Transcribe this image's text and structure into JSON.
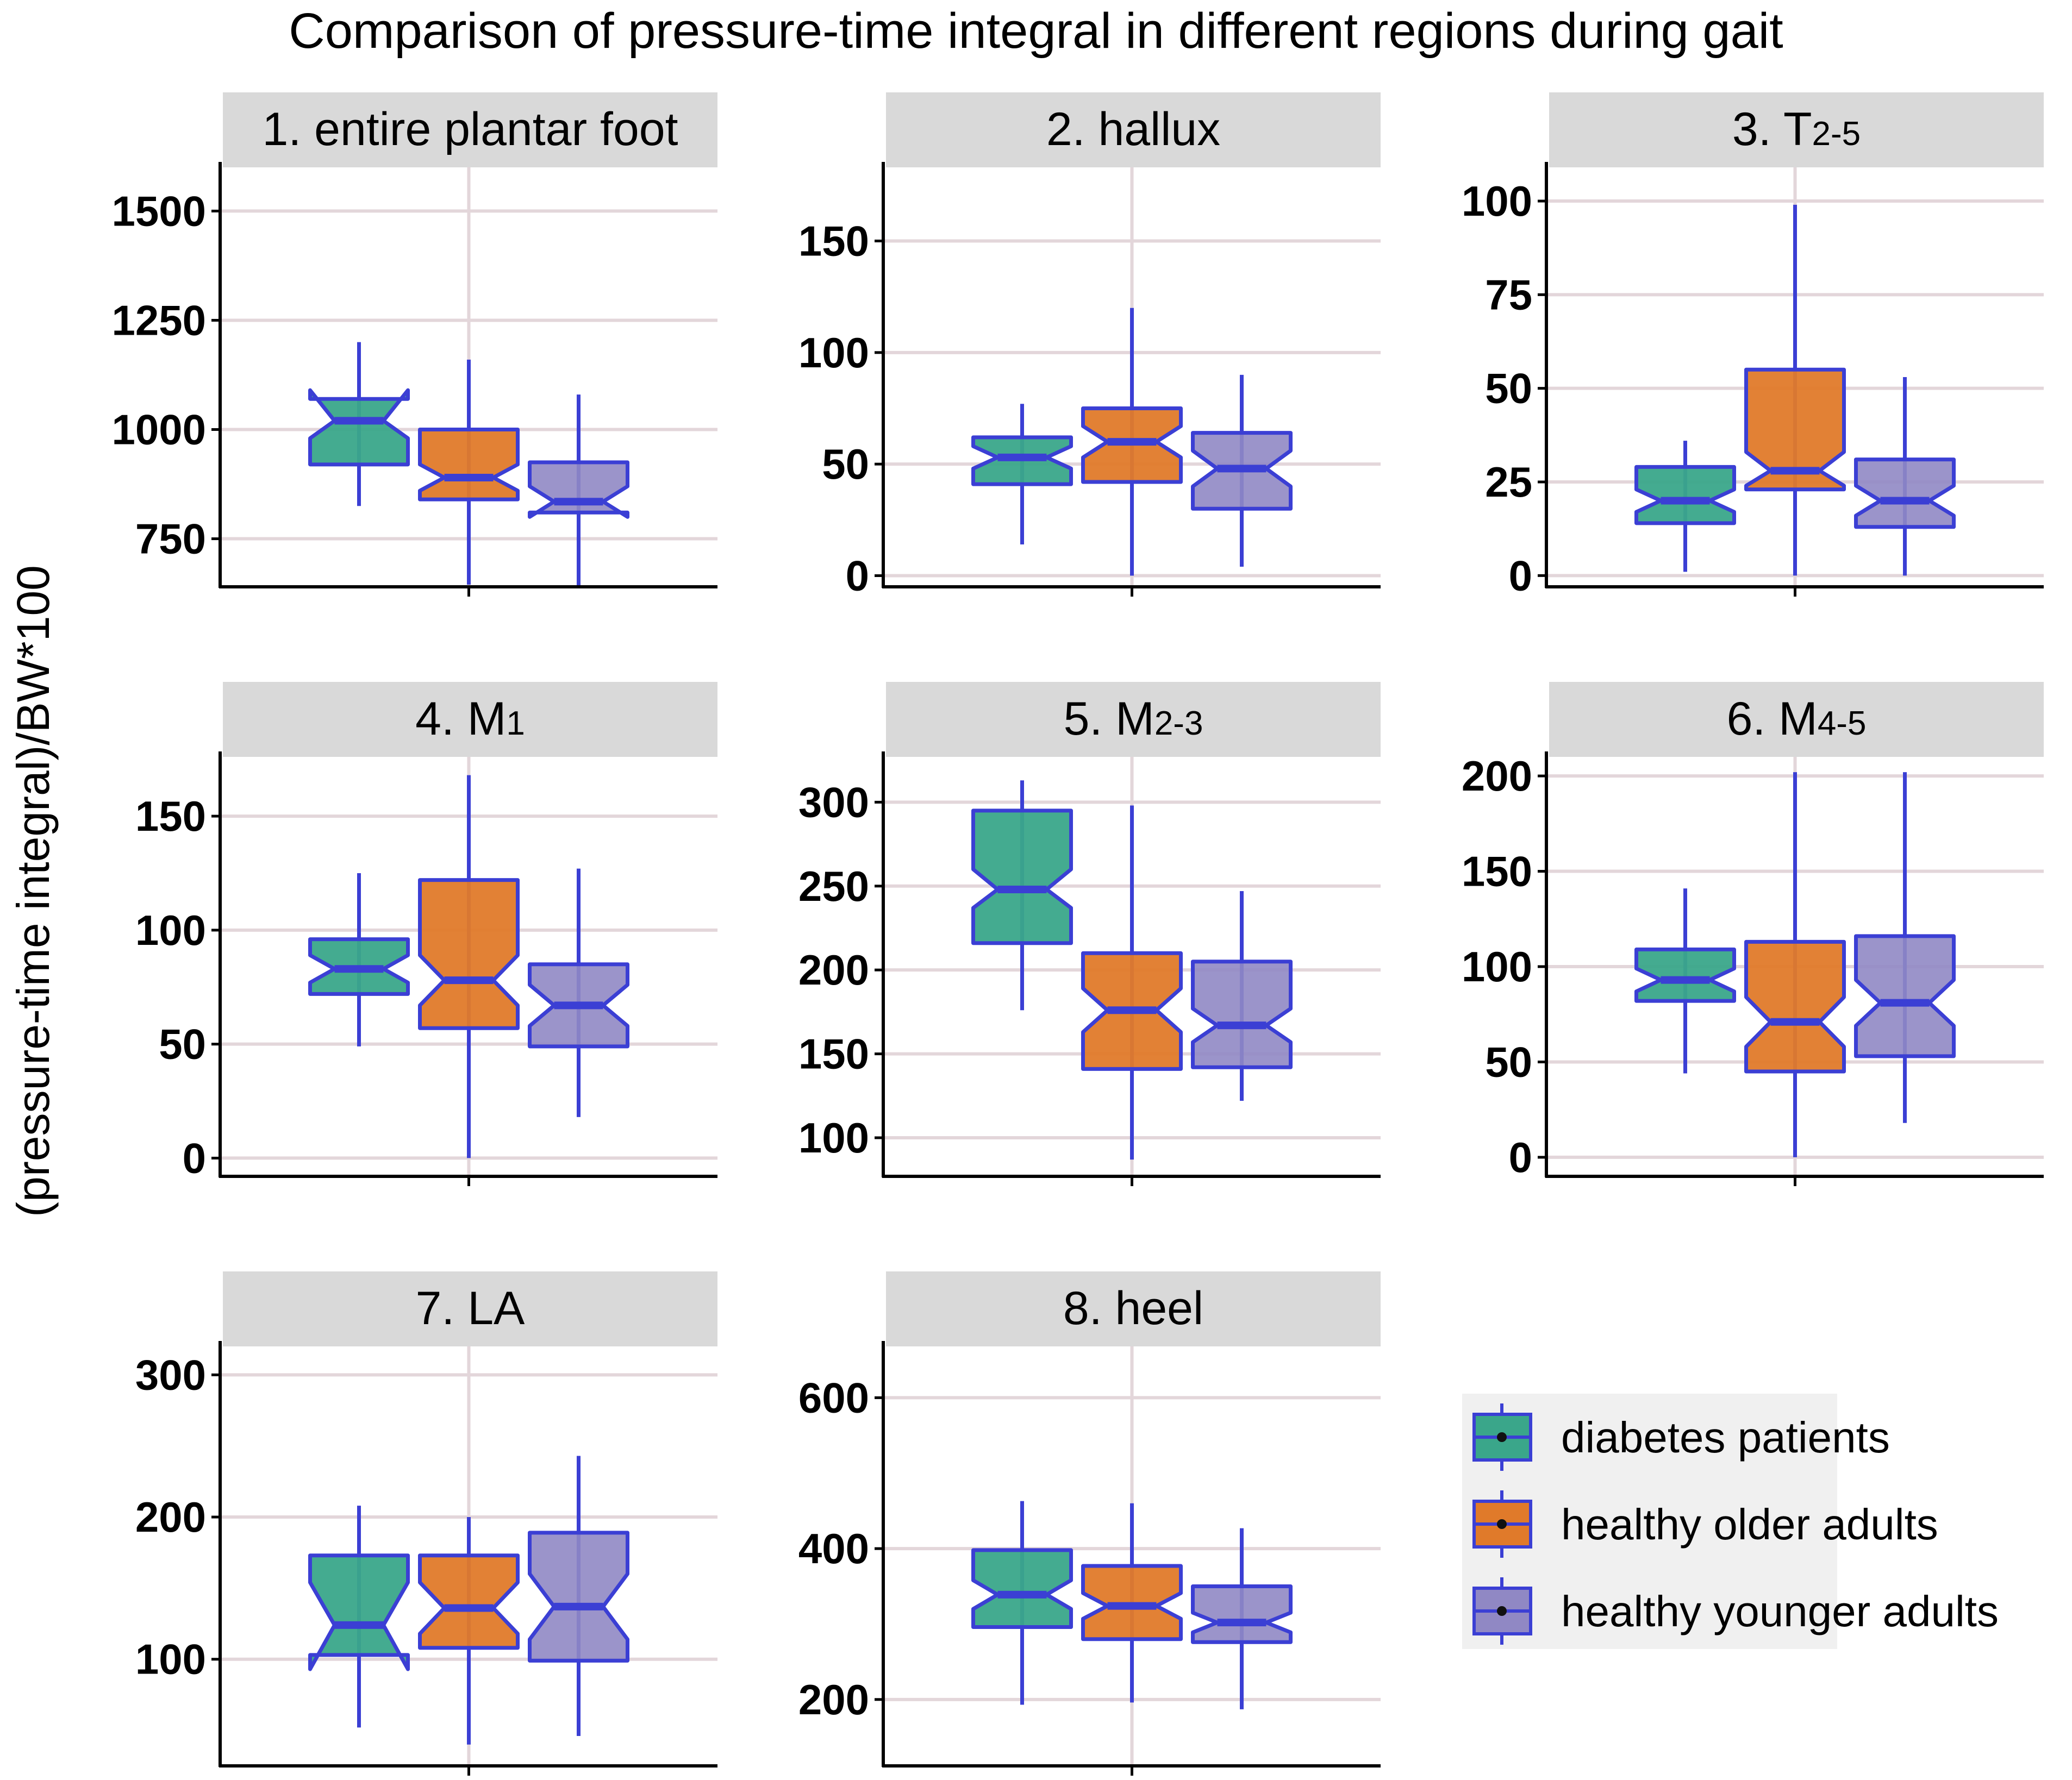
{
  "title": "Comparison of pressure-time integral in different regions during gait",
  "y_axis_label": "(pressure-time integral)/BW*100",
  "colors": {
    "diabetes": "#3aa68a",
    "older": "#e07a2a",
    "younger": "#9088c4",
    "box_outline": "#3b3fd4",
    "grid": "#e3d6da",
    "strip": "#d9d9d9",
    "legend_bg": "#f0f0f0"
  },
  "legend": {
    "items": [
      {
        "label": "diabetes patients",
        "color": "#3aa68a"
      },
      {
        "label": "healthy older adults",
        "color": "#e07a2a"
      },
      {
        "label": "healthy younger adults",
        "color": "#9088c4"
      }
    ]
  },
  "chart_data": [
    {
      "type": "box",
      "title": "1. entire plantar foot",
      "title_main": "1. entire plantar foot",
      "title_sub": "",
      "ylim": [
        640,
        1600
      ],
      "ticks": [
        750,
        1000,
        1250,
        1500
      ],
      "series": [
        {
          "name": "diabetes patients",
          "min": 825,
          "q1": 920,
          "median": 1020,
          "q3": 1070,
          "max": 1200,
          "notch_low": 980,
          "notch_high": 1090
        },
        {
          "name": "healthy older adults",
          "min": 645,
          "q1": 840,
          "median": 890,
          "q3": 1000,
          "max": 1160,
          "notch_low": 860,
          "notch_high": 920
        },
        {
          "name": "healthy younger adults",
          "min": 640,
          "q1": 810,
          "median": 835,
          "q3": 925,
          "max": 1080,
          "notch_low": 800,
          "notch_high": 870
        }
      ]
    },
    {
      "type": "box",
      "title": "2. hallux",
      "title_main": "2. hallux",
      "title_sub": "",
      "ylim": [
        -5,
        183
      ],
      "ticks": [
        0,
        50,
        100,
        150
      ],
      "series": [
        {
          "name": "diabetes patients",
          "min": 14,
          "q1": 41,
          "median": 53,
          "q3": 62,
          "max": 77,
          "notch_low": 48,
          "notch_high": 58
        },
        {
          "name": "healthy older adults",
          "min": 0,
          "q1": 42,
          "median": 60,
          "q3": 75,
          "max": 120,
          "notch_low": 53,
          "notch_high": 67
        },
        {
          "name": "healthy younger adults",
          "min": 4,
          "q1": 30,
          "median": 48,
          "q3": 64,
          "max": 90,
          "notch_low": 40,
          "notch_high": 56
        }
      ]
    },
    {
      "type": "box",
      "title": "3. T2-5",
      "title_main": "3. T",
      "title_sub": "2-5",
      "ylim": [
        -3,
        109
      ],
      "ticks": [
        0,
        25,
        50,
        75,
        100
      ],
      "series": [
        {
          "name": "diabetes patients",
          "min": 1,
          "q1": 14,
          "median": 20,
          "q3": 29,
          "max": 36,
          "notch_low": 17,
          "notch_high": 23
        },
        {
          "name": "healthy older adults",
          "min": 0,
          "q1": 23,
          "median": 28,
          "q3": 55,
          "max": 99,
          "notch_low": 24,
          "notch_high": 33
        },
        {
          "name": "healthy younger adults",
          "min": 0,
          "q1": 13,
          "median": 20,
          "q3": 31,
          "max": 53,
          "notch_low": 16,
          "notch_high": 24
        }
      ]
    },
    {
      "type": "box",
      "title": "4. M1",
      "title_main": "4. M",
      "title_sub": "1",
      "ylim": [
        -8,
        176
      ],
      "ticks": [
        0,
        50,
        100,
        150
      ],
      "series": [
        {
          "name": "diabetes patients",
          "min": 49,
          "q1": 72,
          "median": 83,
          "q3": 96,
          "max": 125,
          "notch_low": 77,
          "notch_high": 89
        },
        {
          "name": "healthy older adults",
          "min": 0,
          "q1": 57,
          "median": 78,
          "q3": 122,
          "max": 168,
          "notch_low": 67,
          "notch_high": 89
        },
        {
          "name": "healthy younger adults",
          "min": 18,
          "q1": 49,
          "median": 67,
          "q3": 85,
          "max": 127,
          "notch_low": 58,
          "notch_high": 76
        }
      ]
    },
    {
      "type": "box",
      "title": "5. M2-3",
      "title_main": "5. M",
      "title_sub": "2-3",
      "ylim": [
        77,
        327
      ],
      "ticks": [
        100,
        150,
        200,
        250,
        300
      ],
      "series": [
        {
          "name": "diabetes patients",
          "min": 176,
          "q1": 216,
          "median": 248,
          "q3": 295,
          "max": 313,
          "notch_low": 237,
          "notch_high": 260
        },
        {
          "name": "healthy older adults",
          "min": 87,
          "q1": 141,
          "median": 176,
          "q3": 210,
          "max": 298,
          "notch_low": 163,
          "notch_high": 189
        },
        {
          "name": "healthy younger adults",
          "min": 122,
          "q1": 142,
          "median": 167,
          "q3": 205,
          "max": 247,
          "notch_low": 157,
          "notch_high": 177
        }
      ]
    },
    {
      "type": "box",
      "title": "6. M4-5",
      "title_main": "6. M",
      "title_sub": "4-5",
      "ylim": [
        -10,
        210
      ],
      "ticks": [
        0,
        50,
        100,
        150,
        200
      ],
      "series": [
        {
          "name": "diabetes patients",
          "min": 44,
          "q1": 82,
          "median": 93,
          "q3": 109,
          "max": 141,
          "notch_low": 87,
          "notch_high": 99
        },
        {
          "name": "healthy older adults",
          "min": 0,
          "q1": 45,
          "median": 71,
          "q3": 113,
          "max": 202,
          "notch_low": 58,
          "notch_high": 84
        },
        {
          "name": "healthy younger adults",
          "min": 18,
          "q1": 53,
          "median": 81,
          "q3": 116,
          "max": 202,
          "notch_low": 69,
          "notch_high": 93
        }
      ]
    },
    {
      "type": "box",
      "title": "7. LA",
      "title_main": "7. LA",
      "title_sub": "",
      "ylim": [
        25,
        320
      ],
      "ticks": [
        100,
        200,
        300
      ],
      "series": [
        {
          "name": "diabetes patients",
          "min": 52,
          "q1": 103,
          "median": 124,
          "q3": 173,
          "max": 208,
          "notch_low": 93,
          "notch_high": 154
        },
        {
          "name": "healthy older adults",
          "min": 40,
          "q1": 108,
          "median": 136,
          "q3": 173,
          "max": 200,
          "notch_low": 118,
          "notch_high": 154
        },
        {
          "name": "healthy younger adults",
          "min": 46,
          "q1": 99,
          "median": 137,
          "q3": 189,
          "max": 243,
          "notch_low": 114,
          "notch_high": 160
        }
      ]
    },
    {
      "type": "box",
      "title": "8. heel",
      "title_main": "8. heel",
      "title_sub": "",
      "ylim": [
        112,
        668
      ],
      "ticks": [
        200,
        400,
        600
      ],
      "series": [
        {
          "name": "diabetes patients",
          "min": 193,
          "q1": 296,
          "median": 339,
          "q3": 398,
          "max": 463,
          "notch_low": 320,
          "notch_high": 358
        },
        {
          "name": "healthy older adults",
          "min": 196,
          "q1": 280,
          "median": 324,
          "q3": 377,
          "max": 460,
          "notch_low": 307,
          "notch_high": 341
        },
        {
          "name": "healthy younger adults",
          "min": 187,
          "q1": 276,
          "median": 302,
          "q3": 350,
          "max": 427,
          "notch_low": 289,
          "notch_high": 315
        }
      ]
    }
  ]
}
